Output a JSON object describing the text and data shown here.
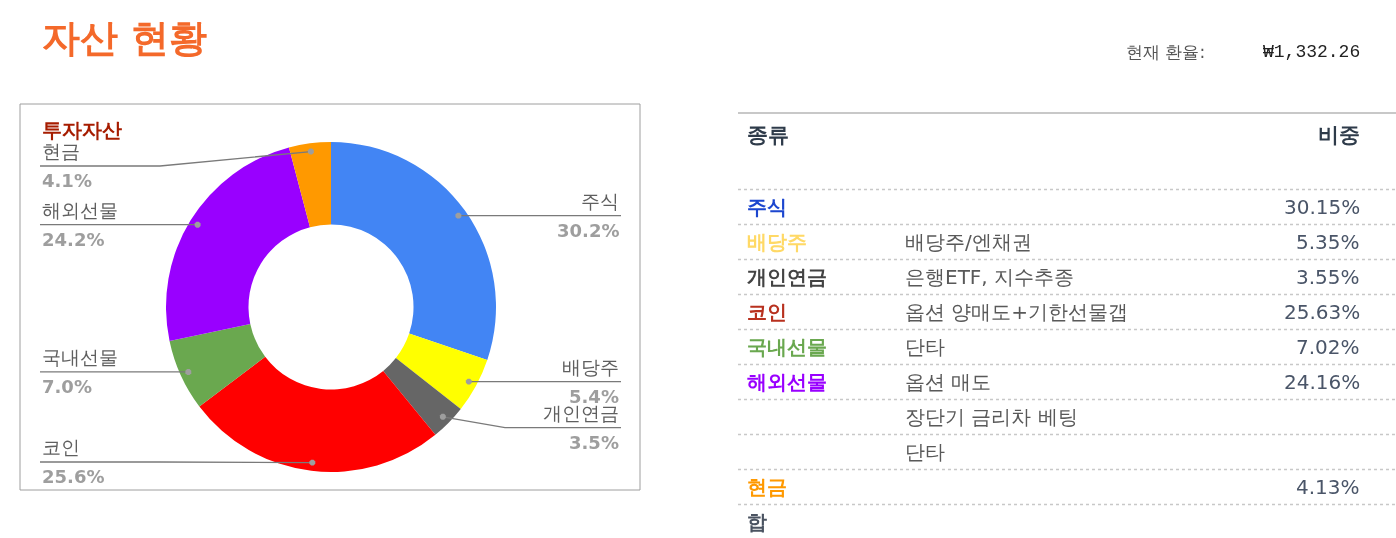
{
  "chart_data": [
    {
      "type": "other",
      "title": "자산 현황",
      "annotations": [
        "현재 환율:",
        "₩1,332.26"
      ]
    },
    {
      "type": "donut",
      "title": "투자자산",
      "categories": [
        "주식",
        "배당주",
        "개인연금",
        "코인",
        "국내선물",
        "해외선물",
        "현금"
      ],
      "values": [
        30.2,
        5.4,
        3.5,
        25.6,
        7.0,
        24.2,
        4.1
      ],
      "value_labels": [
        "30.2%",
        "5.4%",
        "3.5%",
        "25.6%",
        "7.0%",
        "24.2%",
        "4.1%"
      ],
      "colors": [
        "#4285f4",
        "#ffff00",
        "#666666",
        "#ff0000",
        "#6aa84f",
        "#9900ff",
        "#ff9900"
      ],
      "legend": false
    },
    {
      "type": "other",
      "xlabel": "종류",
      "ylabel": "비중",
      "categories": [
        "주식",
        "배당주",
        "개인연금",
        "코인",
        "국내선물",
        "해외선물",
        null,
        null,
        "현금",
        "합"
      ],
      "y2_categories": [
        null,
        "배당주/엔채권",
        "은행ETF, 지수추종",
        "옵션 양매도+기한선물갭",
        "단타",
        "옵션 매도",
        "장단기 금리차 베팅",
        "단타",
        null,
        null
      ],
      "values": [
        30.15,
        5.35,
        3.55,
        25.63,
        7.02,
        24.16,
        null,
        null,
        4.13,
        null
      ],
      "value_labels": [
        "30.15%",
        "5.35%",
        "3.55%",
        "25.63%",
        "7.02%",
        "24.16%",
        null,
        null,
        "4.13%",
        null
      ],
      "colors": [
        "#1c46cf",
        "#ffd966",
        "#434343",
        "#b8311f",
        "#6aa84f",
        "#9900ff",
        null,
        null,
        "#ff9900",
        "#4a5361"
      ]
    }
  ]
}
